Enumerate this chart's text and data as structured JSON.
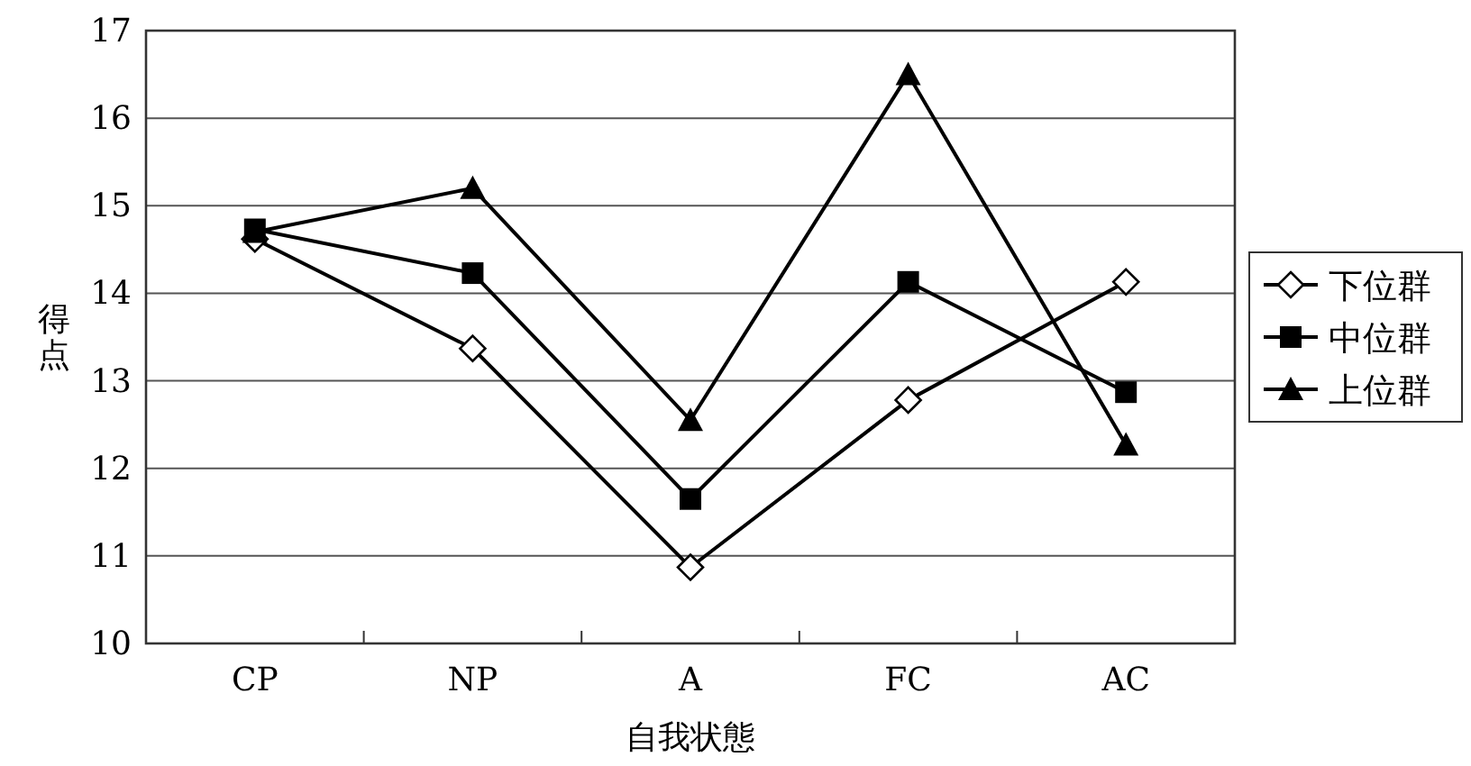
{
  "chart_data": {
    "type": "line",
    "xlabel": "自我状態",
    "ylabel": "得点",
    "categories": [
      "CP",
      "NP",
      "A",
      "FC",
      "AC"
    ],
    "ylim": [
      10,
      17
    ],
    "yticks": [
      10,
      11,
      12,
      13,
      14,
      15,
      16,
      17
    ],
    "grid": "y",
    "legend": "right",
    "series": [
      {
        "name": "下位群",
        "color": "#000000",
        "marker": "diamond",
        "values": [
          14.62,
          13.37,
          10.87,
          12.78,
          14.13
        ]
      },
      {
        "name": "中位群",
        "color": "#000000",
        "marker": "square",
        "values": [
          14.73,
          14.23,
          11.65,
          14.13,
          12.87
        ]
      },
      {
        "name": "上位群",
        "color": "#000000",
        "marker": "triangle",
        "values": [
          14.7,
          15.2,
          12.55,
          16.5,
          12.27
        ]
      }
    ]
  }
}
